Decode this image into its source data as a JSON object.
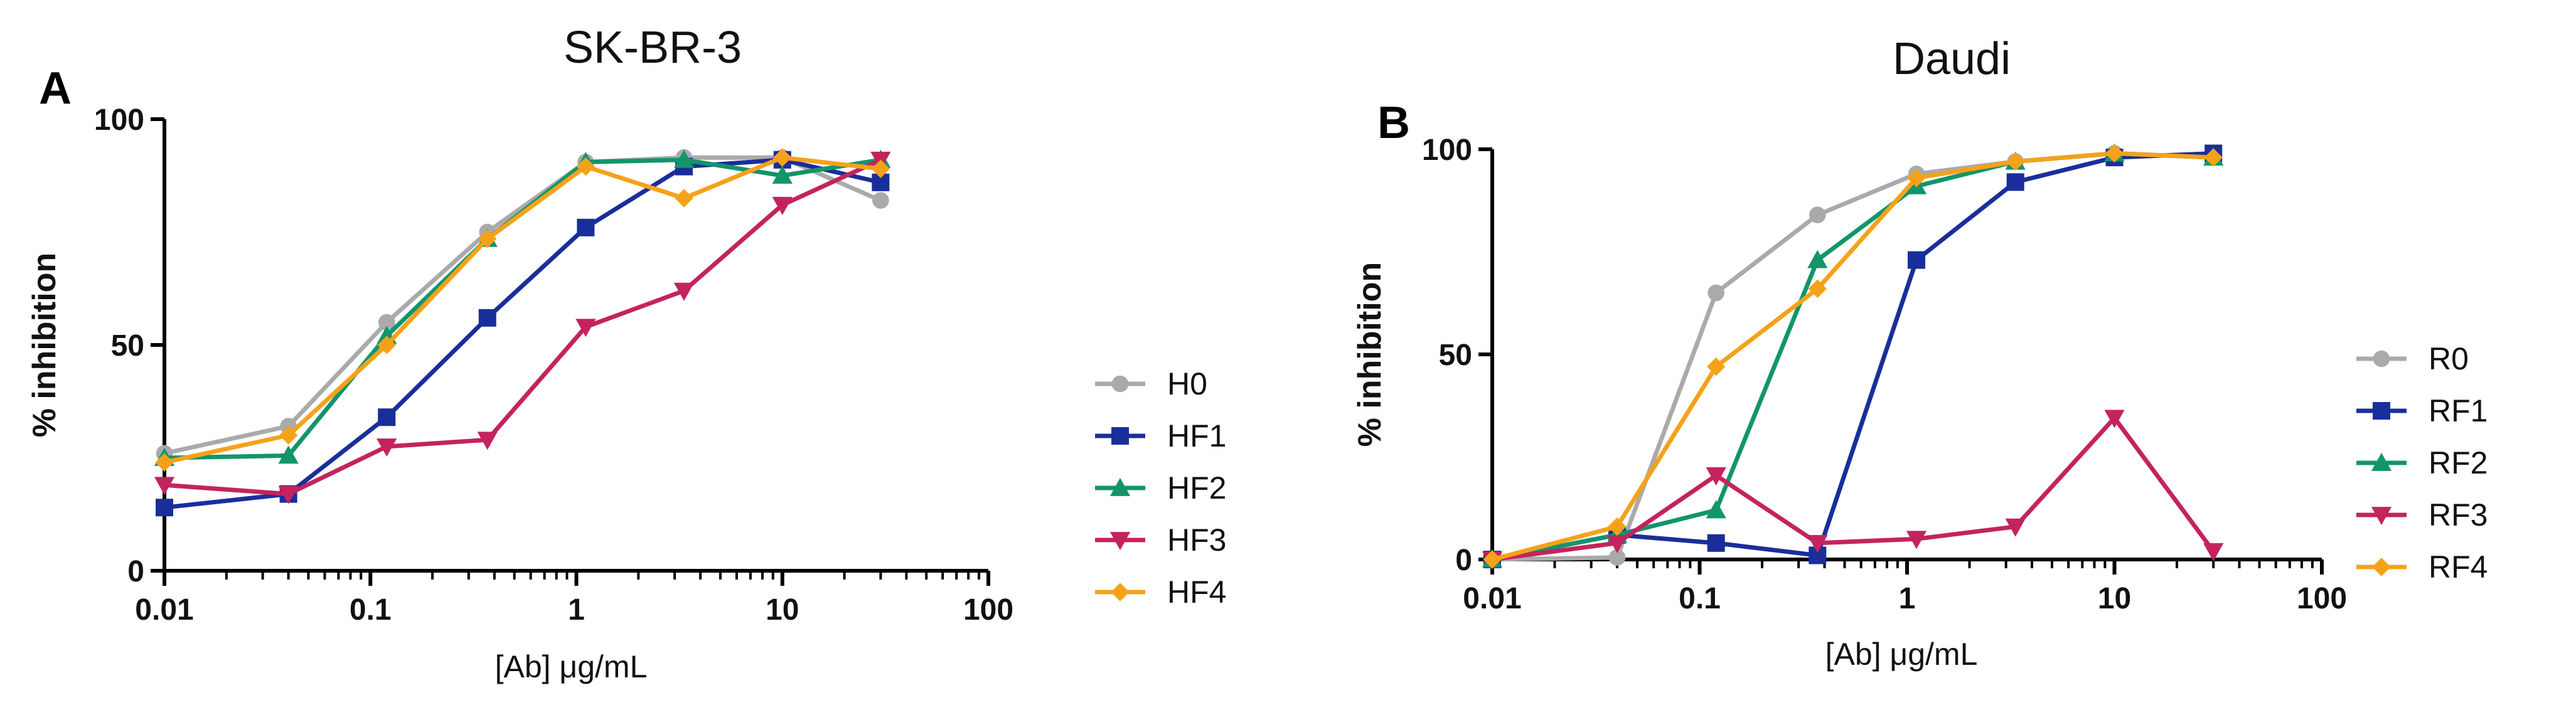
{
  "chart_data": [
    {
      "type": "line",
      "panel_label": "A",
      "title": "SK-BR-3",
      "xlabel": "[Ab] μg/mL",
      "ylabel": "% inhibition",
      "xscale": "log",
      "xlim": [
        0.01,
        100
      ],
      "ylim": [
        0,
        100
      ],
      "xticks": [
        0.01,
        0.1,
        1,
        10,
        100
      ],
      "xtick_labels": [
        "0.01",
        "0.1",
        "1",
        "10",
        "100"
      ],
      "yticks": [
        0,
        50,
        100
      ],
      "ytick_labels": [
        "0",
        "50",
        "100"
      ],
      "x": [
        0.01,
        0.04,
        0.12,
        0.37,
        1.11,
        3.33,
        10,
        30
      ],
      "legend_position": "right",
      "series": [
        {
          "name": "H0",
          "color": "#aaaaaa",
          "marker": "circle",
          "values": [
            26,
            32,
            55,
            75,
            90.5,
            91.5,
            91.5,
            82
          ]
        },
        {
          "name": "HF1",
          "color": "#1a2e9b",
          "marker": "square",
          "values": [
            14,
            17,
            34,
            56,
            76,
            89.5,
            91,
            86
          ]
        },
        {
          "name": "HF2",
          "color": "#12956b",
          "marker": "triangle-up",
          "values": [
            25,
            25.5,
            52,
            73.5,
            90.5,
            91,
            87.5,
            91
          ]
        },
        {
          "name": "HF3",
          "color": "#c4235e",
          "marker": "triangle-down",
          "values": [
            19,
            17,
            27.5,
            29,
            54,
            62,
            81,
            91
          ]
        },
        {
          "name": "HF4",
          "color": "#f5a21a",
          "marker": "diamond",
          "values": [
            24,
            30,
            50,
            73.5,
            89.5,
            82.5,
            91.5,
            89
          ]
        }
      ]
    },
    {
      "type": "line",
      "panel_label": "B",
      "title": "Daudi",
      "xlabel": "[Ab] μg/mL",
      "ylabel": "% inhibition",
      "xscale": "log",
      "xlim": [
        0.01,
        100
      ],
      "ylim": [
        0,
        100
      ],
      "xticks": [
        0.01,
        0.1,
        1,
        10,
        100
      ],
      "xtick_labels": [
        "0.01",
        "0.1",
        "1",
        "10",
        "100"
      ],
      "yticks": [
        0,
        50,
        100
      ],
      "ytick_labels": [
        "0",
        "50",
        "100"
      ],
      "x": [
        0.01,
        0.04,
        0.12,
        0.37,
        1.11,
        3.33,
        10,
        30
      ],
      "legend_position": "right",
      "series": [
        {
          "name": "R0",
          "color": "#aaaaaa",
          "marker": "circle",
          "values": [
            0,
            0.5,
            65,
            84,
            94,
            97,
            99,
            98
          ]
        },
        {
          "name": "RF1",
          "color": "#1a2e9b",
          "marker": "square",
          "values": [
            0,
            6,
            4,
            1,
            73,
            92,
            98,
            99
          ]
        },
        {
          "name": "RF2",
          "color": "#12956b",
          "marker": "triangle-up",
          "values": [
            0,
            6,
            12,
            73,
            91,
            97,
            99,
            98
          ]
        },
        {
          "name": "RF3",
          "color": "#c4235e",
          "marker": "triangle-down",
          "values": [
            0,
            4,
            20.5,
            4,
            5,
            8,
            34.5,
            2
          ]
        },
        {
          "name": "RF4",
          "color": "#f5a21a",
          "marker": "diamond",
          "values": [
            0,
            8,
            47,
            66,
            93,
            97,
            99,
            98
          ]
        }
      ]
    }
  ]
}
